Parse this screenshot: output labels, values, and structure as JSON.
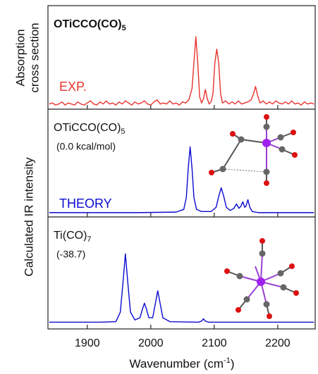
{
  "chart_data": [
    {
      "type": "line",
      "label": "OTiCCO(CO)",
      "label_sub": "5",
      "tag": "EXP.",
      "ylabel": [
        "Absorption",
        "cross section"
      ],
      "color": "#e8332d",
      "xlim": [
        1838,
        2259
      ],
      "ylim": [
        0,
        1
      ],
      "x": [
        1840,
        1845,
        1850,
        1855,
        1860,
        1865,
        1870,
        1875,
        1880,
        1885,
        1890,
        1895,
        1900,
        1905,
        1910,
        1915,
        1920,
        1925,
        1930,
        1935,
        1940,
        1945,
        1950,
        1955,
        1960,
        1965,
        1970,
        1975,
        1980,
        1985,
        1990,
        1995,
        2000,
        2005,
        2010,
        2015,
        2020,
        2025,
        2030,
        2035,
        2040,
        2045,
        2050,
        2055,
        2060,
        2065,
        2068,
        2071,
        2074,
        2077,
        2080,
        2083,
        2086,
        2089,
        2092,
        2095,
        2098,
        2101,
        2104,
        2107,
        2110,
        2113,
        2118,
        2123,
        2128,
        2133,
        2138,
        2143,
        2148,
        2153,
        2158,
        2162,
        2165,
        2168,
        2172,
        2177,
        2182,
        2187,
        2192,
        2197,
        2202,
        2207,
        2212,
        2217,
        2222,
        2227,
        2232,
        2237,
        2242,
        2247,
        2252,
        2257
      ],
      "values": [
        0.05,
        0.06,
        0.04,
        0.05,
        0.07,
        0.04,
        0.06,
        0.05,
        0.04,
        0.07,
        0.05,
        0.04,
        0.06,
        0.08,
        0.05,
        0.04,
        0.07,
        0.05,
        0.08,
        0.05,
        0.06,
        0.04,
        0.07,
        0.05,
        0.08,
        0.06,
        0.04,
        0.07,
        0.05,
        0.06,
        0.08,
        0.05,
        0.04,
        0.07,
        0.09,
        0.05,
        0.06,
        0.05,
        0.08,
        0.05,
        0.06,
        0.04,
        0.07,
        0.06,
        0.09,
        0.2,
        0.45,
        0.7,
        0.45,
        0.12,
        0.06,
        0.1,
        0.19,
        0.1,
        0.05,
        0.07,
        0.15,
        0.45,
        0.58,
        0.45,
        0.15,
        0.06,
        0.08,
        0.05,
        0.07,
        0.05,
        0.08,
        0.05,
        0.06,
        0.07,
        0.09,
        0.15,
        0.22,
        0.14,
        0.06,
        0.08,
        0.05,
        0.07,
        0.05,
        0.08,
        0.06,
        0.05,
        0.07,
        0.05,
        0.08,
        0.05,
        0.06,
        0.04,
        0.07,
        0.05,
        0.06,
        0.05
      ]
    },
    {
      "type": "line",
      "label": "OTiCCO(CO)",
      "label_sub": "5",
      "energy": "(0.0 kcal/mol)",
      "tag": "THEORY",
      "ylabel": "Calculated IR intensity",
      "color": "#0a0ad0",
      "xlim": [
        1838,
        2259
      ],
      "ylim": [
        0,
        1
      ],
      "x": [
        1840,
        1900,
        1980,
        2040,
        2052,
        2056,
        2059,
        2062,
        2065,
        2068,
        2072,
        2080,
        2095,
        2103,
        2107,
        2111,
        2115,
        2119,
        2125,
        2131,
        2135,
        2139,
        2142,
        2145,
        2148,
        2150,
        2153,
        2156,
        2160,
        2170,
        2200,
        2257
      ],
      "values": [
        0.04,
        0.04,
        0.04,
        0.045,
        0.07,
        0.18,
        0.45,
        0.65,
        0.45,
        0.18,
        0.07,
        0.05,
        0.05,
        0.09,
        0.19,
        0.27,
        0.19,
        0.09,
        0.06,
        0.08,
        0.12,
        0.08,
        0.1,
        0.14,
        0.09,
        0.1,
        0.16,
        0.09,
        0.05,
        0.04,
        0.04,
        0.04
      ]
    },
    {
      "type": "line",
      "label": "Ti(CO)",
      "label_sub": "7",
      "energy": "(-38.7)",
      "color": "#0a0ad0",
      "xlabel": "Wavenumber (cm",
      "xlabel_sup": "-1",
      "xlabel_end": ")",
      "xlim": [
        1838,
        2259
      ],
      "ylim": [
        0,
        1
      ],
      "xticks": [
        1900,
        2000,
        2100,
        2200
      ],
      "x": [
        1840,
        1920,
        1945,
        1952,
        1956,
        1960,
        1964,
        1968,
        1975,
        1983,
        1987,
        1990,
        1993,
        1997,
        2003,
        2007,
        2011,
        2015,
        2019,
        2030,
        2075,
        2080,
        2083,
        2086,
        2091,
        2150,
        2257
      ],
      "values": [
        0.06,
        0.06,
        0.065,
        0.15,
        0.4,
        0.67,
        0.4,
        0.15,
        0.08,
        0.1,
        0.18,
        0.23,
        0.18,
        0.1,
        0.1,
        0.22,
        0.34,
        0.22,
        0.1,
        0.065,
        0.06,
        0.07,
        0.09,
        0.07,
        0.06,
        0.06,
        0.06
      ]
    }
  ]
}
